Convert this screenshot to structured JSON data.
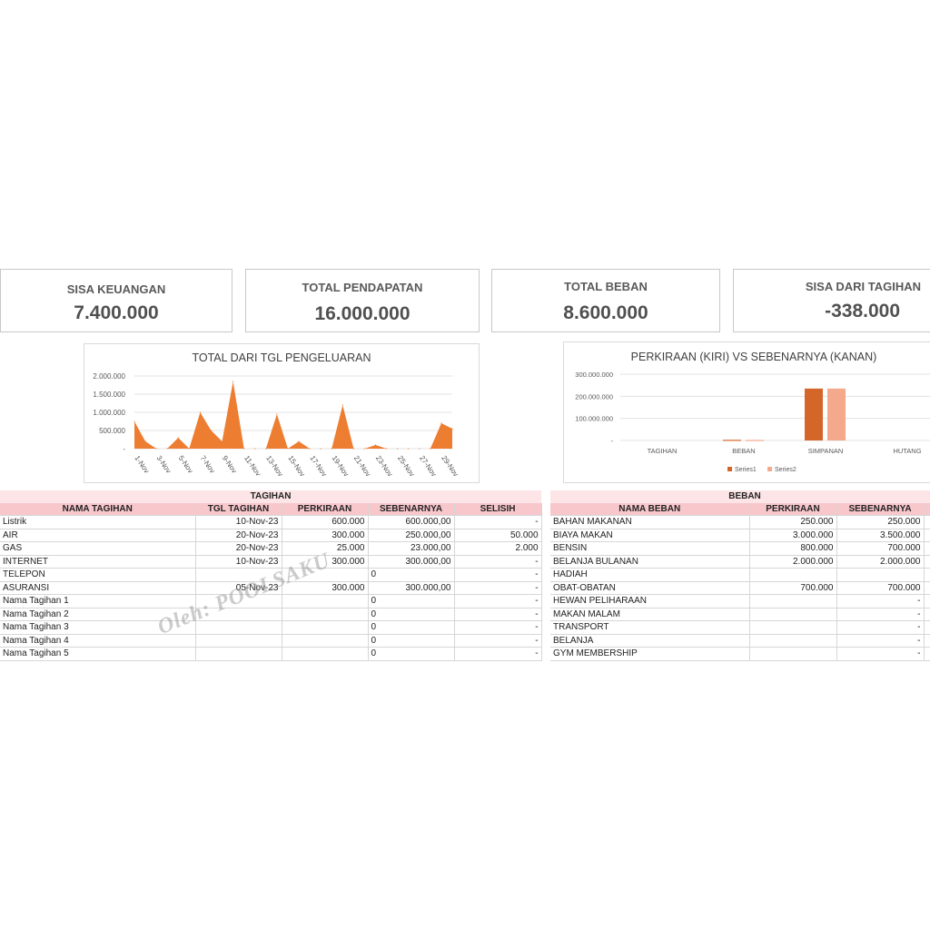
{
  "cards": [
    {
      "label": "SISA KEUANGAN",
      "value": "7.400.000"
    },
    {
      "label": "TOTAL PENDAPATAN",
      "value": "16.000.000"
    },
    {
      "label": "TOTAL BEBAN",
      "value": "8.600.000"
    },
    {
      "label": "SISA DARI TAGIHAN",
      "value": "-338.000"
    }
  ],
  "colors": {
    "accent": "#ed7d31",
    "series1": "#d4662a",
    "series2": "#f4a98c",
    "header_pink": "#f8c7cc",
    "section_pink": "#fde5e7"
  },
  "chart_data": [
    {
      "type": "area",
      "title": "TOTAL DARI TGL PENGELUARAN",
      "xlabel": "",
      "ylabel": "",
      "ylim": [
        0,
        2000000
      ],
      "y_ticks": [
        "2.000.000",
        "1.500.000",
        "1.000.000",
        "500.000",
        "-"
      ],
      "x_tick_labels": [
        "1-Nov",
        "3-Nov",
        "5-Nov",
        "7-Nov",
        "9-Nov",
        "11-Nov",
        "13-Nov",
        "15-Nov",
        "17-Nov",
        "19-Nov",
        "21-Nov",
        "23-Nov",
        "25-Nov",
        "27-Nov",
        "29-Nov"
      ],
      "x": [
        "1-Nov",
        "2-Nov",
        "3-Nov",
        "4-Nov",
        "5-Nov",
        "6-Nov",
        "7-Nov",
        "8-Nov",
        "9-Nov",
        "10-Nov",
        "11-Nov",
        "12-Nov",
        "13-Nov",
        "14-Nov",
        "15-Nov",
        "16-Nov",
        "17-Nov",
        "18-Nov",
        "19-Nov",
        "20-Nov",
        "21-Nov",
        "22-Nov",
        "23-Nov",
        "24-Nov",
        "25-Nov",
        "26-Nov",
        "27-Nov",
        "28-Nov",
        "29-Nov",
        "30-Nov"
      ],
      "values": [
        750000,
        200000,
        0,
        0,
        300000,
        0,
        1000000,
        500000,
        200000,
        1850000,
        0,
        0,
        0,
        950000,
        0,
        200000,
        0,
        0,
        0,
        1200000,
        0,
        0,
        100000,
        0,
        0,
        0,
        0,
        0,
        700000,
        550000
      ],
      "grid": true
    },
    {
      "type": "bar",
      "title": "PERKIRAAN (KIRI) VS SEBENARNYA (KANAN)",
      "categories": [
        "TAGIHAN",
        "BEBAN",
        "SIMPANAN",
        "HUTANG"
      ],
      "ylim": [
        0,
        300000000
      ],
      "y_ticks": [
        "300.000.000",
        "200.000.000",
        "100.000.000",
        "-"
      ],
      "series": [
        {
          "name": "Series1",
          "values": [
            0,
            3000000,
            235000000,
            0
          ]
        },
        {
          "name": "Series2",
          "values": [
            0,
            2500000,
            235000000,
            0
          ]
        }
      ],
      "legend": "bottom",
      "grid": true
    }
  ],
  "tagihan": {
    "section": "TAGIHAN",
    "headers": [
      "NAMA TAGIHAN",
      "TGL TAGIHAN",
      "PERKIRAAN",
      "SEBENARNYA",
      "SELISIH"
    ],
    "rows": [
      [
        "Listrik",
        "10-Nov-23",
        "600.000",
        "600.000,00",
        "-"
      ],
      [
        "AIR",
        "20-Nov-23",
        "300.000",
        "250.000,00",
        "50.000"
      ],
      [
        "GAS",
        "20-Nov-23",
        "25.000",
        "23.000,00",
        "2.000"
      ],
      [
        "INTERNET",
        "10-Nov-23",
        "300.000",
        "300.000,00",
        "-"
      ],
      [
        "TELEPON",
        "",
        "",
        "0",
        "-"
      ],
      [
        "ASURANSI",
        "05-Nov-23",
        "300.000",
        "300.000,00",
        "-"
      ],
      [
        "Nama Tagihan 1",
        "",
        "",
        "0",
        "-"
      ],
      [
        "Nama Tagihan 2",
        "",
        "",
        "0",
        "-"
      ],
      [
        "Nama Tagihan 3",
        "",
        "",
        "0",
        "-"
      ],
      [
        "Nama Tagihan 4",
        "",
        "",
        "0",
        "-"
      ],
      [
        "Nama Tagihan 5",
        "",
        "",
        "0",
        "-"
      ]
    ]
  },
  "beban": {
    "section": "BEBAN",
    "headers": [
      "NAMA BEBAN",
      "PERKIRAAN",
      "SEBENARNYA"
    ],
    "rows": [
      [
        "BAHAN MAKANAN",
        "250.000",
        "250.000"
      ],
      [
        "BIAYA MAKAN",
        "3.000.000",
        "3.500.000"
      ],
      [
        "BENSIN",
        "800.000",
        "700.000"
      ],
      [
        "BELANJA BULANAN",
        "2.000.000",
        "2.000.000"
      ],
      [
        "HADIAH",
        "",
        ""
      ],
      [
        "OBAT-OBATAN",
        "700.000",
        "700.000"
      ],
      [
        "HEWAN PELIHARAAN",
        "",
        "-"
      ],
      [
        "MAKAN MALAM",
        "",
        "-"
      ],
      [
        "TRANSPORT",
        "",
        "-"
      ],
      [
        "BELANJA",
        "",
        "-"
      ],
      [
        "GYM MEMBERSHIP",
        "",
        "-"
      ]
    ]
  },
  "watermark": "Oleh: POOLSAKU"
}
